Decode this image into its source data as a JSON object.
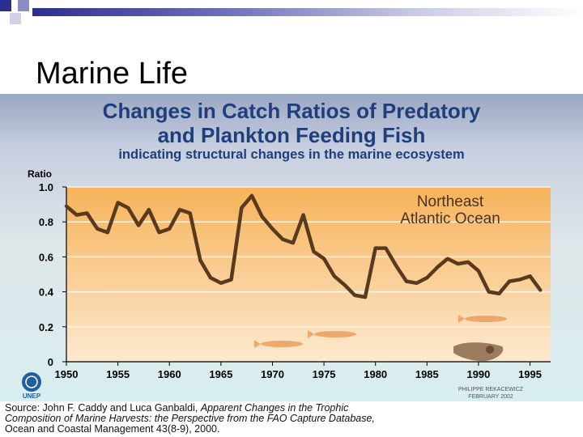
{
  "slide": {
    "title": "Marine Life"
  },
  "chart_data": {
    "type": "line",
    "title": "Changes in Catch Ratios of Predatory",
    "title_line2": "and Plankton Feeding Fish",
    "subtitle": "indicating structural changes in the marine ecosystem",
    "ylabel": "Ratio",
    "xlabel": "",
    "ylim": [
      0,
      1.0
    ],
    "xlim": [
      1950,
      1997
    ],
    "y_ticks": [
      "1.0",
      "0.8",
      "0.6",
      "0.4",
      "0.2",
      "0"
    ],
    "x_ticks": [
      "1950",
      "1955",
      "1960",
      "1965",
      "1970",
      "1975",
      "1980",
      "1985",
      "1990",
      "1995"
    ],
    "annotation_line1": "Northeast",
    "annotation_line2": "Atlantic Ocean",
    "series": [
      {
        "name": "Northeast Atlantic Ocean",
        "x": [
          1950,
          1951,
          1952,
          1953,
          1954,
          1955,
          1956,
          1957,
          1958,
          1959,
          1960,
          1961,
          1962,
          1963,
          1964,
          1965,
          1966,
          1967,
          1968,
          1969,
          1970,
          1971,
          1972,
          1973,
          1974,
          1975,
          1976,
          1977,
          1978,
          1979,
          1980,
          1981,
          1982,
          1983,
          1984,
          1985,
          1986,
          1987,
          1988,
          1989,
          1990,
          1991,
          1992,
          1993,
          1994,
          1995,
          1996
        ],
        "values": [
          0.89,
          0.84,
          0.85,
          0.76,
          0.74,
          0.91,
          0.88,
          0.78,
          0.87,
          0.74,
          0.76,
          0.87,
          0.85,
          0.58,
          0.48,
          0.45,
          0.47,
          0.88,
          0.95,
          0.83,
          0.76,
          0.7,
          0.68,
          0.84,
          0.63,
          0.59,
          0.49,
          0.44,
          0.38,
          0.37,
          0.65,
          0.65,
          0.55,
          0.46,
          0.45,
          0.48,
          0.54,
          0.59,
          0.56,
          0.57,
          0.52,
          0.4,
          0.39,
          0.46,
          0.47,
          0.49,
          0.41
        ]
      }
    ],
    "credit_line1": "PHILIPPE REKACEWICZ",
    "credit_line2": "FEBRUARY 2002",
    "logo_text": "UNEP"
  },
  "source": {
    "line1_prefix": "Source:  John F. Caddy and Luca Ganbaldi, ",
    "line1_italic": "Apparent Changes in the Trophic",
    "line2_italic": "Composition of Marine Harvests: the Perspective from the FAO Capture Database,",
    "line3": "Ocean and Coastal Management 43(8-9), 2000."
  },
  "colors": {
    "line": "#5a3a1e",
    "plot_top": "#f6b35a",
    "plot_bottom": "#fde9cf",
    "title_blue": "#1e3f7c",
    "fish": "#e8a060"
  }
}
